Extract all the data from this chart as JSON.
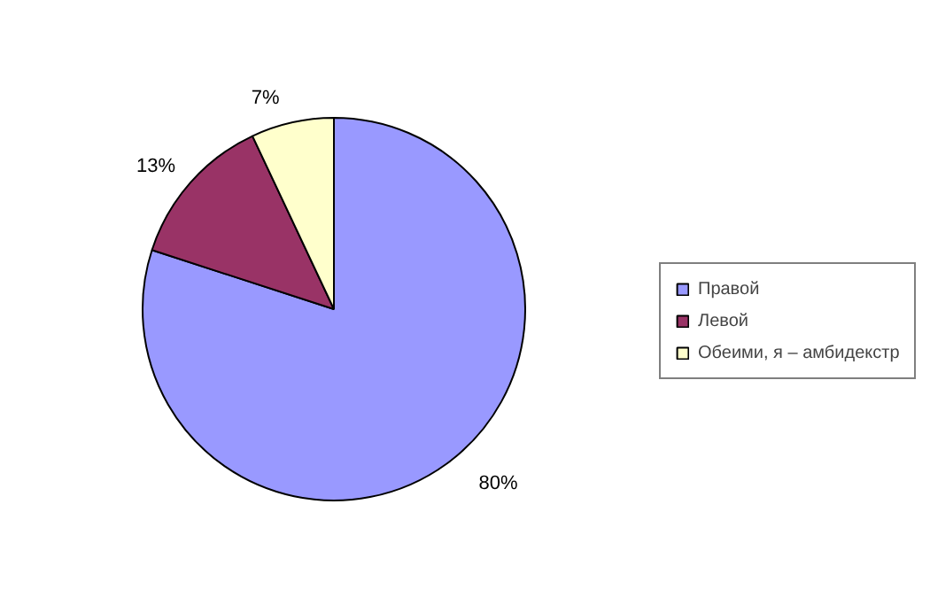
{
  "chart_data": {
    "type": "pie",
    "categories": [
      "Правой",
      "Левой",
      "Обеими, я – амбидекстр"
    ],
    "values": [
      80,
      13,
      7
    ],
    "colors": [
      "#9999ff",
      "#993366",
      "#ffffcc"
    ],
    "value_labels": [
      "80%",
      "13%",
      "7%"
    ],
    "legend": "right"
  }
}
